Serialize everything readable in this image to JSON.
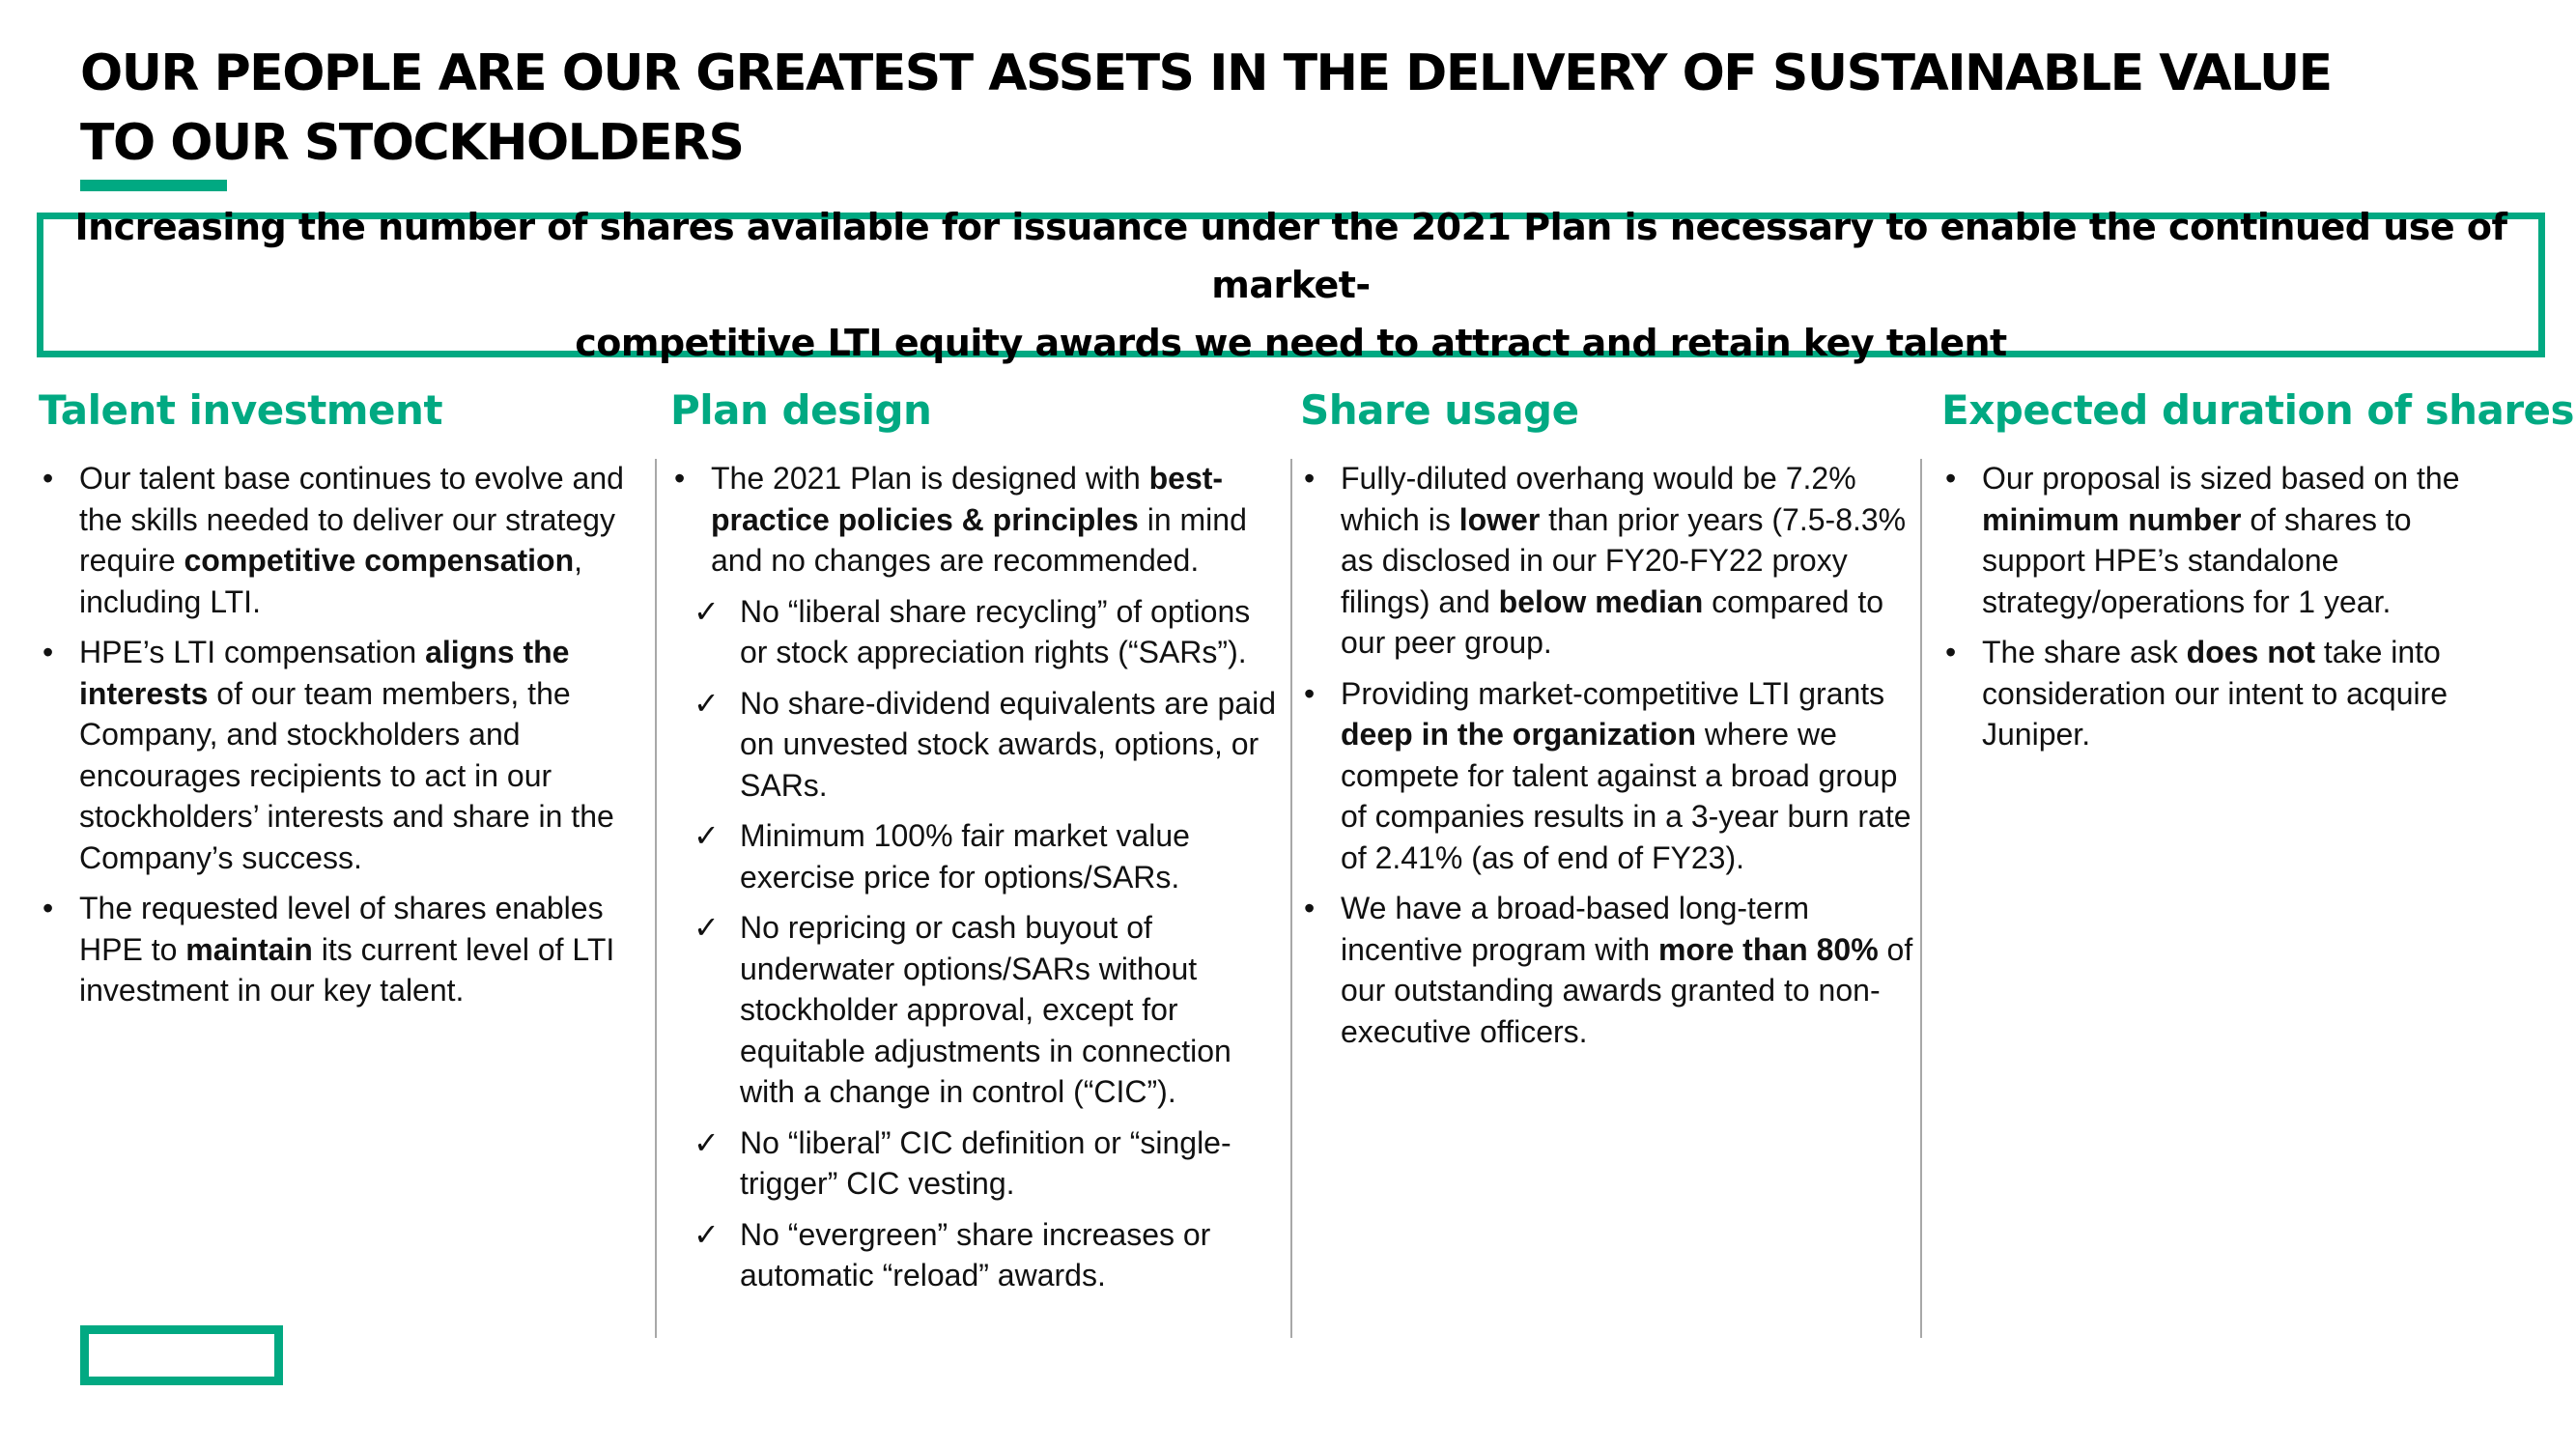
{
  "title": {
    "line1": "OUR PEOPLE ARE OUR GREATEST ASSETS IN THE DELIVERY OF SUSTAINABLE VALUE",
    "line2": "TO OUR STOCKHOLDERS"
  },
  "banner": {
    "line1": "Increasing the number of shares available for issuance under the 2021 Plan is necessary to enable the continued use of market-",
    "line2": "competitive LTI equity awards we need to attract and retain key talent"
  },
  "columns": {
    "talent": {
      "heading": "Talent investment",
      "items": [
        {
          "a": "Our talent base continues to evolve and the skills needed to deliver our strategy require ",
          "b": "competitive compensation",
          "c": ", including LTI."
        },
        {
          "a": "HPE’s LTI compensation ",
          "b": "aligns the interests",
          "c": " of our team members, the Company, and stockholders and encourages recipients to act in our stockholders’ interests and share in the Company’s success."
        },
        {
          "a": "The requested level of shares enables HPE to ",
          "b": "maintain",
          "c": " its current level of LTI investment in our key talent."
        }
      ]
    },
    "plan": {
      "heading": "Plan design",
      "intro": {
        "a": "The 2021 Plan is designed with ",
        "b": "best-practice policies & principles",
        "c": " in mind and no changes are recommended."
      },
      "checks": [
        "No “liberal share recycling” of options or stock appreciation rights (“SARs”).",
        "No share-dividend equivalents are paid on unvested stock awards, options, or SARs.",
        "Minimum 100% fair market value exercise price for options/SARs.",
        "No repricing or cash buyout of underwater options/SARs without stockholder approval, except for equitable adjustments in connection with a change in control (“CIC”).",
        "No “liberal” CIC definition or “single-trigger” CIC vesting.",
        "No “evergreen” share increases or automatic “reload” awards."
      ]
    },
    "usage": {
      "heading": "Share usage",
      "item1": {
        "a": "Fully-diluted overhang would be 7.2% which is ",
        "b": "lower",
        "c": " than prior years (7.5-8.3% as disclosed in our FY20-FY22 proxy filings) and ",
        "d": "below median",
        "e": " compared to our peer group."
      },
      "item2": {
        "a": "Providing market-competitive LTI grants ",
        "b": "deep in the organization",
        "c": " where we compete for talent against a broad group of companies results in a 3-year burn rate of 2.41% (as of end of FY23)."
      },
      "item3": {
        "a": "We have a broad-based long-term incentive program with ",
        "b": "more than 80%",
        "c": " of our outstanding awards granted to non-executive officers."
      }
    },
    "duration": {
      "heading": "Expected duration of shares",
      "items": [
        {
          "a": "Our proposal is sized based on the ",
          "b": "minimum number",
          "c": " of shares to support HPE’s standalone strategy/operations for 1 year."
        },
        {
          "a": "The share ask ",
          "b": "does not",
          "c": " take into consideration our intent to acquire Juniper."
        }
      ]
    }
  },
  "glyphs": {
    "bullet": "•",
    "check": "✓"
  },
  "colors": {
    "accent": "#01a982",
    "text": "#000000",
    "divider": "#a8a8a8"
  }
}
